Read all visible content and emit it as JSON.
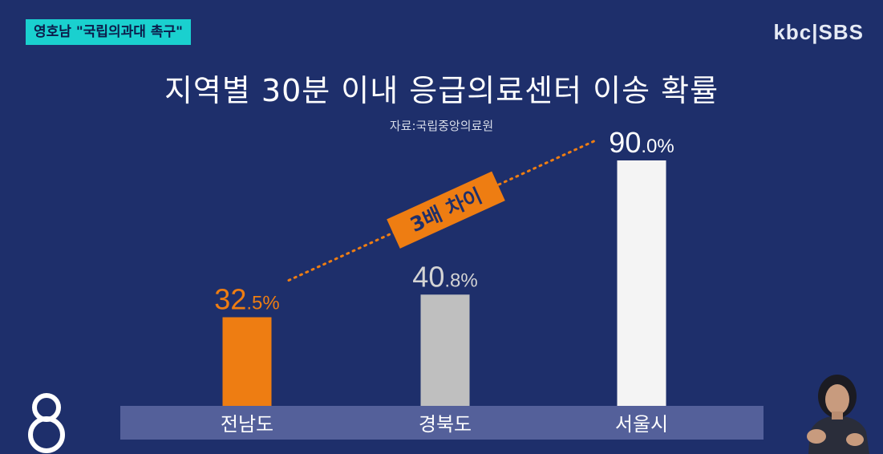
{
  "topic_badge": "영호남 \"국립의과대 촉구\"",
  "broadcaster": "kbc|SBS",
  "colors": {
    "background": "#1e2f6b",
    "highlight": "#ee7d12",
    "neutral": "#bfbfbf",
    "top": "#f4f4f4",
    "axis_band": "#54609a"
  },
  "chart_data": {
    "type": "bar",
    "title": "지역별 30분 이내 응급의료센터 이송 확률",
    "source": "자료:국립중앙의료원",
    "categories": [
      "전남도",
      "경북도",
      "서울시"
    ],
    "values": [
      32.5,
      40.8,
      90.0
    ],
    "value_labels": [
      {
        "main": "32",
        "decimal": ".5%"
      },
      {
        "main": "40",
        "decimal": ".8%"
      },
      {
        "main": "90",
        "decimal": ".0%"
      }
    ],
    "bar_colors": [
      "#ee7d12",
      "#bfbfbf",
      "#f4f4f4"
    ],
    "label_colors": [
      "#ee7d12",
      "#d4d4d4",
      "#ffffff"
    ],
    "ylim": [
      0,
      100
    ],
    "annotation": "3배 차이",
    "xlabel": "",
    "ylabel": "",
    "grid": false,
    "legend": "none"
  }
}
